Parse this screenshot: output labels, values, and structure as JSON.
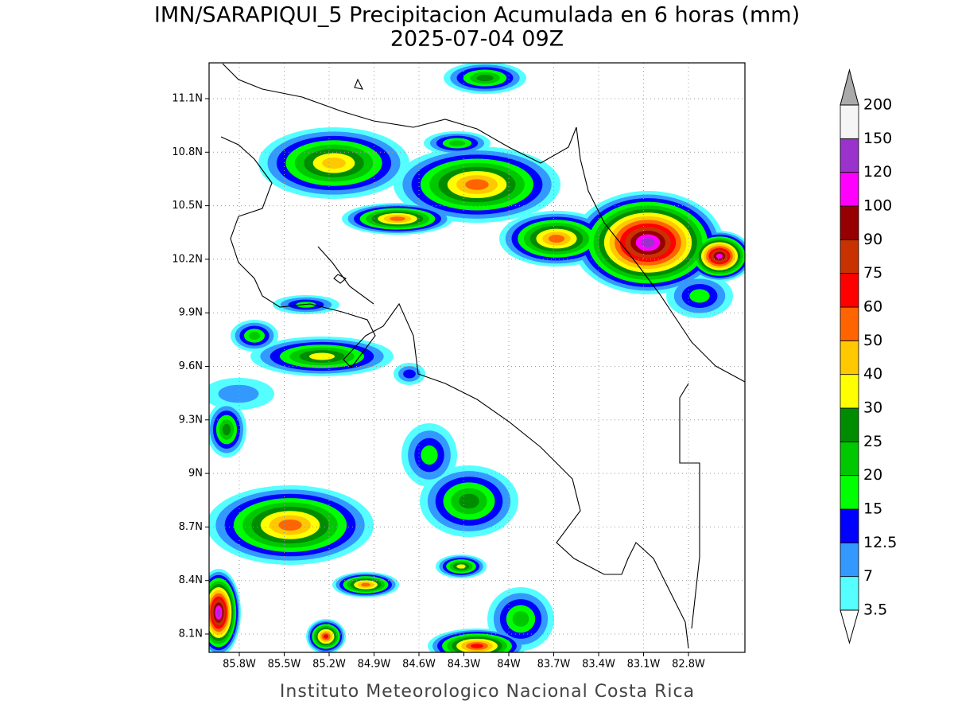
{
  "title": "IMN/SARAPIQUI_5 Precipitacion Acumulada en 6 horas (mm)",
  "subtitle": "2025-07-04 09Z",
  "lat_labels": [
    "11.1N",
    "10.8N",
    "10.5N",
    "10.2N",
    "9.9N",
    "9.6N",
    "9.3N",
    "9N",
    "8.7N",
    "8.4N",
    "8.1N"
  ],
  "lon_labels": [
    "85.8W",
    "85.5W",
    "85.2W",
    "84.9W",
    "84.6W",
    "84.3W",
    "84W",
    "83.7W",
    "83.4W",
    "83.1W",
    "82.8W"
  ],
  "legend": {
    "labels": [
      "3.5",
      "7",
      "12.5",
      "15",
      "20",
      "25",
      "30",
      "40",
      "50",
      "60",
      "75",
      "90",
      "100",
      "120",
      "150",
      "200"
    ],
    "colors": [
      "#55ffff",
      "#3399ff",
      "#0000ff",
      "#00ff00",
      "#00c800",
      "#008c00",
      "#ffff00",
      "#ffc800",
      "#ff6400",
      "#ff0000",
      "#c83200",
      "#960000",
      "#ff00ff",
      "#9933cc",
      "#f5f5f5"
    ],
    "over_color": "#aaaaaa"
  },
  "footer": "Instituto Meteorologico Nacional Costa Rica"
}
